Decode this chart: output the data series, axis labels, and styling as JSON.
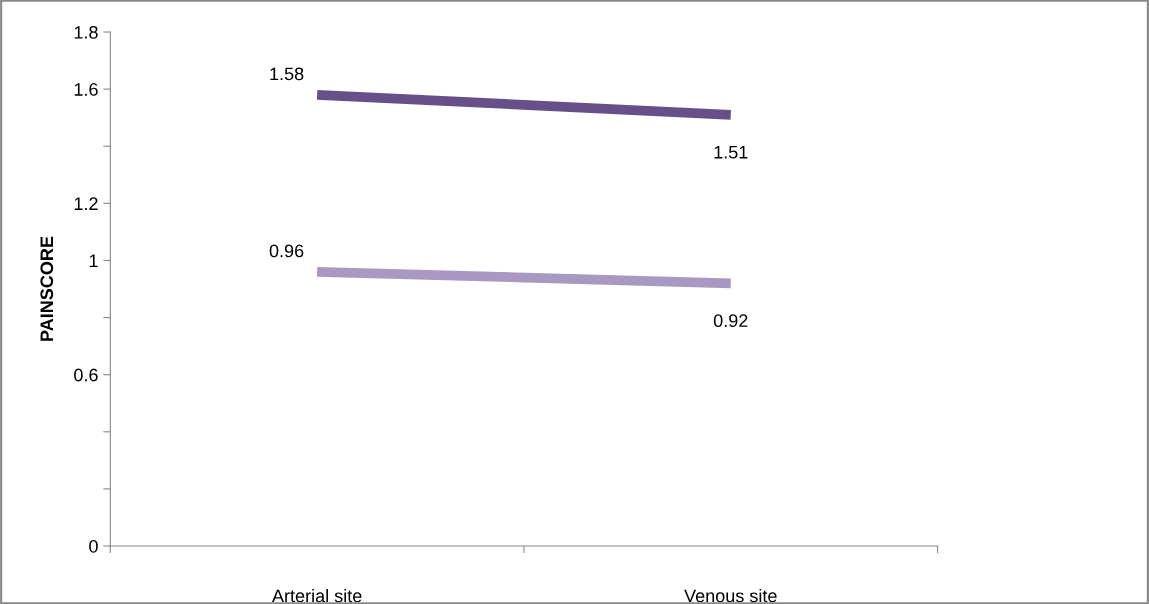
{
  "chart_data": {
    "type": "line",
    "ylabel": "PAINSCORE",
    "categories": [
      "Arterial site",
      "Venous site"
    ],
    "series": [
      {
        "color": "#67508a",
        "values": [
          1.58,
          1.51
        ]
      },
      {
        "color": "#a898c2",
        "values": [
          0.96,
          0.92
        ]
      }
    ],
    "data_labels": true,
    "ylim": [
      0,
      1.8
    ],
    "yticks": [
      0,
      {
        "value": 0.2,
        "label": null
      },
      {
        "value": 0.4,
        "label": null
      },
      0.6,
      {
        "value": 0.8,
        "label": null
      },
      1,
      1.2,
      {
        "value": 1.4,
        "label": null
      },
      1.6,
      1.8
    ],
    "grid": false,
    "marker": "none",
    "line_style": "solid"
  }
}
